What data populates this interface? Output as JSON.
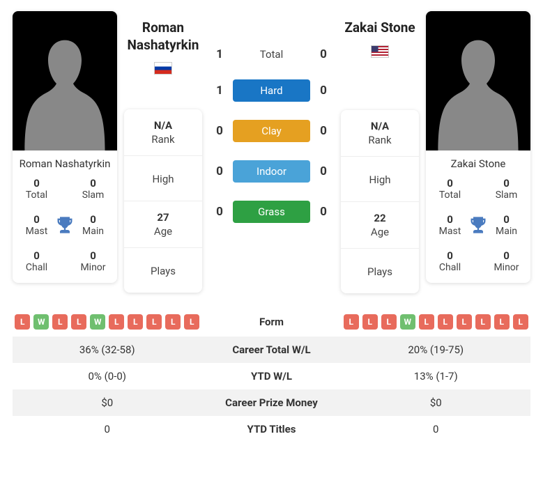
{
  "player1": {
    "name": "Roman Nashatyrkin",
    "flag": "ru",
    "stats": {
      "total": {
        "val": "0",
        "lbl": "Total"
      },
      "slam": {
        "val": "0",
        "lbl": "Slam"
      },
      "mast": {
        "val": "0",
        "lbl": "Mast"
      },
      "main": {
        "val": "0",
        "lbl": "Main"
      },
      "chall": {
        "val": "0",
        "lbl": "Chall"
      },
      "minor": {
        "val": "0",
        "lbl": "Minor"
      }
    },
    "info": {
      "rank": {
        "val": "N/A",
        "lbl": "Rank"
      },
      "high": {
        "lbl": "High"
      },
      "age": {
        "val": "27",
        "lbl": "Age"
      },
      "plays": {
        "lbl": "Plays"
      }
    },
    "form": [
      "L",
      "W",
      "L",
      "L",
      "W",
      "L",
      "L",
      "L",
      "L",
      "L"
    ],
    "career_wl": "36% (32-58)",
    "ytd_wl": "0% (0-0)",
    "prize": "$0",
    "ytd_titles": "0"
  },
  "player2": {
    "name": "Zakai Stone",
    "flag": "us",
    "stats": {
      "total": {
        "val": "0",
        "lbl": "Total"
      },
      "slam": {
        "val": "0",
        "lbl": "Slam"
      },
      "mast": {
        "val": "0",
        "lbl": "Mast"
      },
      "main": {
        "val": "0",
        "lbl": "Main"
      },
      "chall": {
        "val": "0",
        "lbl": "Chall"
      },
      "minor": {
        "val": "0",
        "lbl": "Minor"
      }
    },
    "info": {
      "rank": {
        "val": "N/A",
        "lbl": "Rank"
      },
      "high": {
        "lbl": "High"
      },
      "age": {
        "val": "22",
        "lbl": "Age"
      },
      "plays": {
        "lbl": "Plays"
      }
    },
    "form": [
      "L",
      "L",
      "L",
      "W",
      "L",
      "L",
      "L",
      "L",
      "L",
      "L"
    ],
    "career_wl": "20% (19-75)",
    "ytd_wl": "13% (1-7)",
    "prize": "$0",
    "ytd_titles": "0"
  },
  "h2h": {
    "total": {
      "p1": "1",
      "label": "Total",
      "p2": "0"
    },
    "hard": {
      "p1": "1",
      "label": "Hard",
      "p2": "0",
      "color": "#1976c5"
    },
    "clay": {
      "p1": "0",
      "label": "Clay",
      "p2": "0",
      "color": "#e5a021"
    },
    "indoor": {
      "p1": "0",
      "label": "Indoor",
      "p2": "0",
      "color": "#4aa3d8"
    },
    "grass": {
      "p1": "0",
      "label": "Grass",
      "p2": "0",
      "color": "#2ea043"
    }
  },
  "compare_rows": {
    "form": "Form",
    "career": "Career Total W/L",
    "ytd": "YTD W/L",
    "prize": "Career Prize Money",
    "titles": "YTD Titles"
  },
  "badge_colors": {
    "W": "#6fbf6f",
    "L": "#e86b5c"
  }
}
